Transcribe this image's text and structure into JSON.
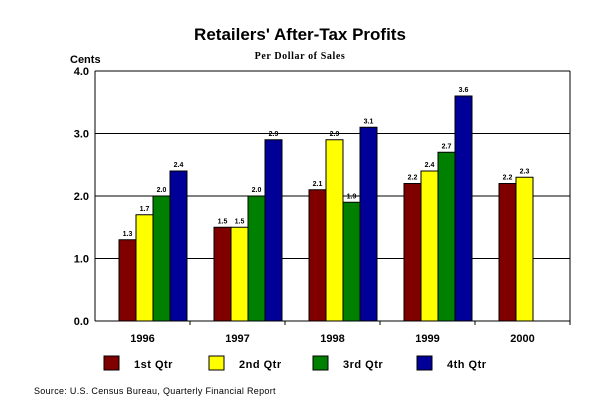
{
  "chart_data": {
    "type": "bar",
    "title": "Retailers' After-Tax Profits",
    "subtitle": "Per Dollar of Sales",
    "ylabel": "Cents",
    "xlabel": "",
    "ylim": [
      0,
      4
    ],
    "yticks": [
      "0.0",
      "1.0",
      "2.0",
      "3.0",
      "4.0"
    ],
    "grid": true,
    "legend_position": "bottom",
    "categories": [
      "1996",
      "1997",
      "1998",
      "1999",
      "2000"
    ],
    "series": [
      {
        "name": "1st Qtr",
        "color": "#800000",
        "values": [
          1.3,
          1.5,
          2.1,
          2.2,
          2.2
        ],
        "labels": [
          "1.3",
          "1.5",
          "2.1",
          "2.2",
          "2.2"
        ]
      },
      {
        "name": "2nd Qtr",
        "color": "#FFFF00",
        "values": [
          1.7,
          1.5,
          2.9,
          2.4,
          2.3
        ],
        "labels": [
          "1.7",
          "1.5",
          "2.9",
          "2.4",
          "2.3"
        ]
      },
      {
        "name": "3rd Qtr",
        "color": "#008000",
        "values": [
          2.0,
          2.0,
          1.9,
          2.7,
          null
        ],
        "labels": [
          "2.0",
          "2.0",
          "1.9",
          "2.7",
          ""
        ]
      },
      {
        "name": "4th Qtr",
        "color": "#000099",
        "values": [
          2.4,
          2.9,
          3.1,
          3.6,
          null
        ],
        "labels": [
          "2.4",
          "2.9",
          "3.1",
          "3.6",
          ""
        ]
      }
    ],
    "source": "Source: U.S. Census Bureau, Quarterly Financial Report"
  }
}
